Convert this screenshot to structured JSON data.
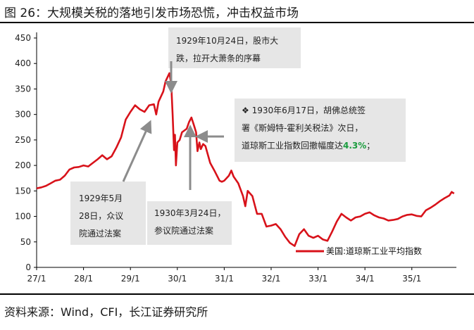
{
  "figure": {
    "title": "图 26：大规模关税的落地引发市场恐慌，冲击权益市场",
    "source": "资料来源：Wind，CFI，长江证券研究所"
  },
  "colors": {
    "series": "#d8121a",
    "annotation_box": "#e6e6e6",
    "arrow": "#8c8c8c",
    "accent": "#1a9c3e"
  },
  "chart_data": {
    "type": "line",
    "title": "",
    "xlabel": "",
    "ylabel": "",
    "ylim": [
      0,
      450
    ],
    "yticks": [
      0,
      50,
      100,
      150,
      200,
      250,
      300,
      350,
      400,
      450
    ],
    "xlim": [
      1927.0,
      1935.95
    ],
    "xticks": [
      {
        "value": 1927.0,
        "label": "27/1"
      },
      {
        "value": 1928.0,
        "label": "28/1"
      },
      {
        "value": 1929.0,
        "label": "29/1"
      },
      {
        "value": 1930.0,
        "label": "30/1"
      },
      {
        "value": 1931.0,
        "label": "31/1"
      },
      {
        "value": 1932.0,
        "label": "32/1"
      },
      {
        "value": 1933.0,
        "label": "33/1"
      },
      {
        "value": 1934.0,
        "label": "34/1"
      },
      {
        "value": 1935.0,
        "label": "35/1"
      }
    ],
    "legend": {
      "label": "美国:道琼斯工业平均指数",
      "position": "bottom-right"
    },
    "series": [
      {
        "name": "美国:道琼斯工业平均指数",
        "points": [
          [
            1927.0,
            155
          ],
          [
            1927.1,
            157
          ],
          [
            1927.2,
            160
          ],
          [
            1927.3,
            165
          ],
          [
            1927.4,
            170
          ],
          [
            1927.5,
            172
          ],
          [
            1927.6,
            180
          ],
          [
            1927.7,
            192
          ],
          [
            1927.8,
            196
          ],
          [
            1927.9,
            197
          ],
          [
            1928.0,
            200
          ],
          [
            1928.1,
            198
          ],
          [
            1928.2,
            205
          ],
          [
            1928.3,
            212
          ],
          [
            1928.4,
            220
          ],
          [
            1928.5,
            212
          ],
          [
            1928.6,
            218
          ],
          [
            1928.7,
            235
          ],
          [
            1928.8,
            255
          ],
          [
            1928.9,
            290
          ],
          [
            1929.0,
            305
          ],
          [
            1929.1,
            318
          ],
          [
            1929.2,
            310
          ],
          [
            1929.3,
            305
          ],
          [
            1929.4,
            318
          ],
          [
            1929.5,
            320
          ],
          [
            1929.55,
            300
          ],
          [
            1929.6,
            325
          ],
          [
            1929.7,
            345
          ],
          [
            1929.75,
            365
          ],
          [
            1929.8,
            375
          ],
          [
            1929.83,
            381
          ],
          [
            1929.87,
            360
          ],
          [
            1929.9,
            300
          ],
          [
            1929.93,
            230
          ],
          [
            1929.95,
            260
          ],
          [
            1929.97,
            200
          ],
          [
            1930.0,
            245
          ],
          [
            1930.05,
            250
          ],
          [
            1930.1,
            265
          ],
          [
            1930.2,
            272
          ],
          [
            1930.25,
            285
          ],
          [
            1930.3,
            294
          ],
          [
            1930.35,
            280
          ],
          [
            1930.4,
            265
          ],
          [
            1930.43,
            228
          ],
          [
            1930.47,
            245
          ],
          [
            1930.5,
            232
          ],
          [
            1930.55,
            242
          ],
          [
            1930.6,
            238
          ],
          [
            1930.7,
            205
          ],
          [
            1930.8,
            188
          ],
          [
            1930.9,
            170
          ],
          [
            1930.95,
            168
          ],
          [
            1931.0,
            170
          ],
          [
            1931.1,
            180
          ],
          [
            1931.15,
            190
          ],
          [
            1931.2,
            178
          ],
          [
            1931.3,
            165
          ],
          [
            1931.4,
            140
          ],
          [
            1931.45,
            120
          ],
          [
            1931.5,
            150
          ],
          [
            1931.6,
            140
          ],
          [
            1931.7,
            105
          ],
          [
            1931.8,
            105
          ],
          [
            1931.9,
            80
          ],
          [
            1932.0,
            82
          ],
          [
            1932.1,
            85
          ],
          [
            1932.2,
            75
          ],
          [
            1932.3,
            60
          ],
          [
            1932.4,
            48
          ],
          [
            1932.5,
            42
          ],
          [
            1932.6,
            65
          ],
          [
            1932.7,
            75
          ],
          [
            1932.8,
            62
          ],
          [
            1932.9,
            58
          ],
          [
            1933.0,
            62
          ],
          [
            1933.1,
            55
          ],
          [
            1933.2,
            52
          ],
          [
            1933.3,
            70
          ],
          [
            1933.4,
            90
          ],
          [
            1933.5,
            105
          ],
          [
            1933.6,
            98
          ],
          [
            1933.7,
            92
          ],
          [
            1933.8,
            98
          ],
          [
            1933.9,
            100
          ],
          [
            1934.0,
            105
          ],
          [
            1934.1,
            108
          ],
          [
            1934.2,
            102
          ],
          [
            1934.3,
            98
          ],
          [
            1934.4,
            96
          ],
          [
            1934.5,
            92
          ],
          [
            1934.6,
            93
          ],
          [
            1934.7,
            95
          ],
          [
            1934.8,
            100
          ],
          [
            1934.9,
            103
          ],
          [
            1935.0,
            104
          ],
          [
            1935.1,
            101
          ],
          [
            1935.2,
            100
          ],
          [
            1935.3,
            112
          ],
          [
            1935.4,
            117
          ],
          [
            1935.5,
            123
          ],
          [
            1935.6,
            130
          ],
          [
            1935.7,
            136
          ],
          [
            1935.8,
            141
          ],
          [
            1935.85,
            148
          ],
          [
            1935.9,
            145
          ]
        ]
      }
    ],
    "annotations": [
      {
        "id": "crash",
        "lines": [
          "1929年10月24日，股市大",
          "跌，拉开大萧条的序幕"
        ],
        "target": [
          1929.83,
          381
        ]
      },
      {
        "id": "house",
        "lines": [
          "1929年5月",
          "28日，众议",
          "院通过法案"
        ],
        "target": [
          1929.45,
          315
        ]
      },
      {
        "id": "senate",
        "lines": [
          "1930年3月24日，",
          "参议院通过法案"
        ],
        "target": [
          1930.23,
          287
        ]
      },
      {
        "id": "smoot",
        "lines": [
          "❖ 1930年6月17日，胡佛总统签",
          "署《斯姆特-霍利关税法》次日，",
          "道琼斯工业指数回撤幅度达"
        ],
        "accent": "4.3%",
        "accent_suffix": "；",
        "target": [
          1930.45,
          252
        ]
      }
    ]
  }
}
